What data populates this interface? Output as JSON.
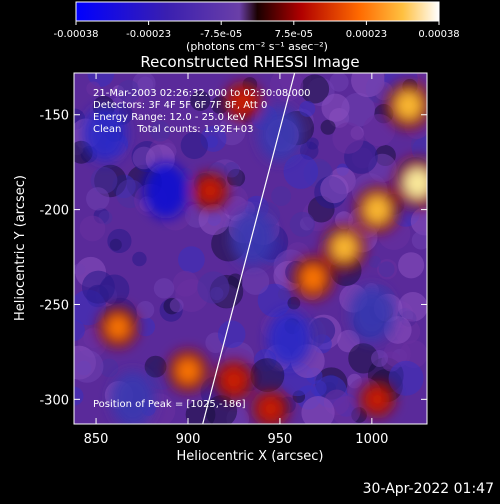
{
  "chart_data": {
    "type": "heatmap",
    "title": "Reconstructed RHESSI Image",
    "xlabel": "Heliocentric X (arcsec)",
    "ylabel": "Heliocentric Y (arcsec)",
    "xlim": [
      838,
      1030
    ],
    "ylim": [
      -313,
      -128
    ],
    "xticks": [
      850,
      900,
      950,
      1000
    ],
    "yticks": [
      -150,
      -200,
      -250,
      -300
    ],
    "colorbar": {
      "ticks": [
        "-0.00038",
        "-0.00023",
        "-7.5e-05",
        "7.5e-05",
        "0.00023",
        "0.00038"
      ],
      "unit_label": "(photons cm⁻² s⁻¹ asec⁻²)",
      "range": [
        -0.00038,
        0.00038
      ]
    },
    "annotations": {
      "time_range": "21-Mar-2003 02:26:32.000 to 02:30:08.000",
      "detectors": "Detectors: 3F 4F 5F 6F 7F 8F, Att 0",
      "energy_range": "Energy Range: 12.0 - 25.0 keV",
      "method_counts": "Clean     Total counts: 1.92E+03",
      "peak": "Position of Peak = [1025,-186]"
    },
    "limb_line": {
      "x": [
        908,
        958
      ],
      "y": [
        -313,
        -128
      ]
    },
    "bright_sources": [
      {
        "x": 1020,
        "y": -145,
        "level": 0.9
      },
      {
        "x": 1003,
        "y": -200,
        "level": 0.85
      },
      {
        "x": 985,
        "y": -220,
        "level": 0.8
      },
      {
        "x": 1025,
        "y": -186,
        "level": 1.0
      },
      {
        "x": 968,
        "y": -236,
        "level": 0.75
      },
      {
        "x": 862,
        "y": -262,
        "level": 0.65
      },
      {
        "x": 900,
        "y": -285,
        "level": 0.7
      },
      {
        "x": 925,
        "y": -290,
        "level": 0.6
      },
      {
        "x": 930,
        "y": -143,
        "level": 0.55
      },
      {
        "x": 912,
        "y": -190,
        "level": 0.5
      },
      {
        "x": 1003,
        "y": -300,
        "level": 0.45
      },
      {
        "x": 945,
        "y": -305,
        "level": 0.5
      }
    ],
    "dim_regions": [
      {
        "x": 888,
        "y": -190,
        "level": -0.8
      },
      {
        "x": 855,
        "y": -160,
        "level": -0.6
      },
      {
        "x": 935,
        "y": -215,
        "level": -0.55
      },
      {
        "x": 950,
        "y": -160,
        "level": -0.5
      },
      {
        "x": 955,
        "y": -268,
        "level": -0.6
      },
      {
        "x": 1000,
        "y": -255,
        "level": -0.5
      },
      {
        "x": 870,
        "y": -300,
        "level": -0.45
      }
    ]
  },
  "footer": {
    "date_stamp": "30-Apr-2022 01:47"
  }
}
